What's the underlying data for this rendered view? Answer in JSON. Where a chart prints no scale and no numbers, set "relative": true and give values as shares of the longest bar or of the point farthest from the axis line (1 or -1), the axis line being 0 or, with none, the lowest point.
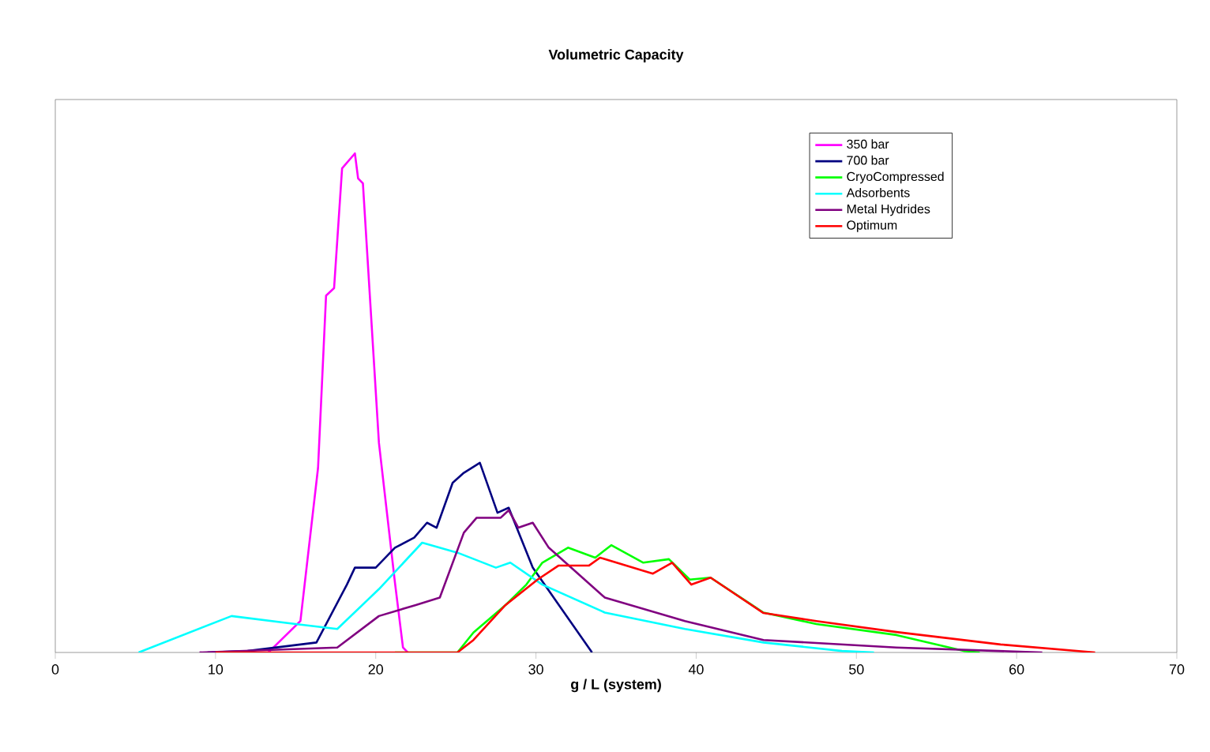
{
  "chart_data": {
    "type": "line",
    "title": "Volumetric Capacity",
    "xlabel": "g / L (system)",
    "relative": true,
    "xlim": [
      0,
      70
    ],
    "xticks": [
      0,
      10,
      20,
      30,
      40,
      50,
      60,
      70
    ],
    "grid": false,
    "legend": "top right",
    "marker": "none",
    "line_style": "solid",
    "series": [
      {
        "name": "350 bar",
        "color": "#ff00ff",
        "x": [
          13.3,
          15.3,
          16.4,
          16.9,
          17.4,
          17.9,
          18.7,
          18.9,
          19.2,
          20.2,
          21.2,
          21.7,
          22.0
        ],
        "values": [
          0,
          0.063,
          0.37,
          0.715,
          0.73,
          0.97,
          1.0,
          0.95,
          0.94,
          0.42,
          0.14,
          0.01,
          0
        ]
      },
      {
        "name": "700 bar",
        "color": "#000080",
        "x": [
          9.5,
          12,
          16.3,
          18.2,
          18.7,
          20,
          21.2,
          22.4,
          23.2,
          23.8,
          24.8,
          25.5,
          26.5,
          27.6,
          28.3,
          29.8,
          33.5
        ],
        "values": [
          0,
          0.003,
          0.02,
          0.136,
          0.17,
          0.17,
          0.21,
          0.23,
          0.26,
          0.25,
          0.34,
          0.36,
          0.38,
          0.28,
          0.29,
          0.17,
          0
        ]
      },
      {
        "name": "CryoCompressed",
        "color": "#00ff00",
        "x": [
          21.2,
          25.1,
          26.1,
          28.1,
          29.4,
          30.4,
          32,
          33.7,
          34.7,
          36.7,
          38.3,
          39.6,
          40.9,
          44.2,
          47.5,
          52.5,
          56.7,
          57.7
        ],
        "values": [
          0,
          0,
          0.04,
          0.095,
          0.136,
          0.18,
          0.21,
          0.19,
          0.215,
          0.18,
          0.187,
          0.146,
          0.15,
          0.08,
          0.057,
          0.035,
          0.003,
          0
        ]
      },
      {
        "name": "Adsorbents",
        "color": "#00ffff",
        "x": [
          5.2,
          11,
          15,
          17.6,
          20.2,
          22.9,
          25.1,
          27.5,
          28.4,
          30.4,
          34.3,
          39.3,
          44.2,
          49.1,
          51.1
        ],
        "values": [
          0,
          0.073,
          0.057,
          0.047,
          0.127,
          0.22,
          0.2,
          0.17,
          0.18,
          0.136,
          0.08,
          0.047,
          0.02,
          0.003,
          0
        ]
      },
      {
        "name": "Metal Hydrides",
        "color": "#800080",
        "x": [
          9,
          17.6,
          20.2,
          22.5,
          24,
          25.5,
          26.3,
          27.8,
          28.3,
          28.9,
          29.8,
          30.8,
          34.3,
          39.3,
          44.2,
          52.5,
          61.6
        ],
        "values": [
          0,
          0.01,
          0.073,
          0.095,
          0.11,
          0.24,
          0.27,
          0.27,
          0.285,
          0.25,
          0.26,
          0.21,
          0.11,
          0.063,
          0.025,
          0.01,
          0
        ]
      },
      {
        "name": "Optimum",
        "color": "#ff0000",
        "x": [
          10,
          25.1,
          26.1,
          28.1,
          30.1,
          31.4,
          33.3,
          34,
          37.3,
          38.5,
          39.7,
          40.9,
          44.2,
          47.5,
          52.5,
          59,
          64.9
        ],
        "values": [
          0,
          0,
          0.025,
          0.095,
          0.146,
          0.174,
          0.174,
          0.19,
          0.158,
          0.18,
          0.136,
          0.15,
          0.079,
          0.063,
          0.041,
          0.016,
          0
        ]
      }
    ]
  }
}
